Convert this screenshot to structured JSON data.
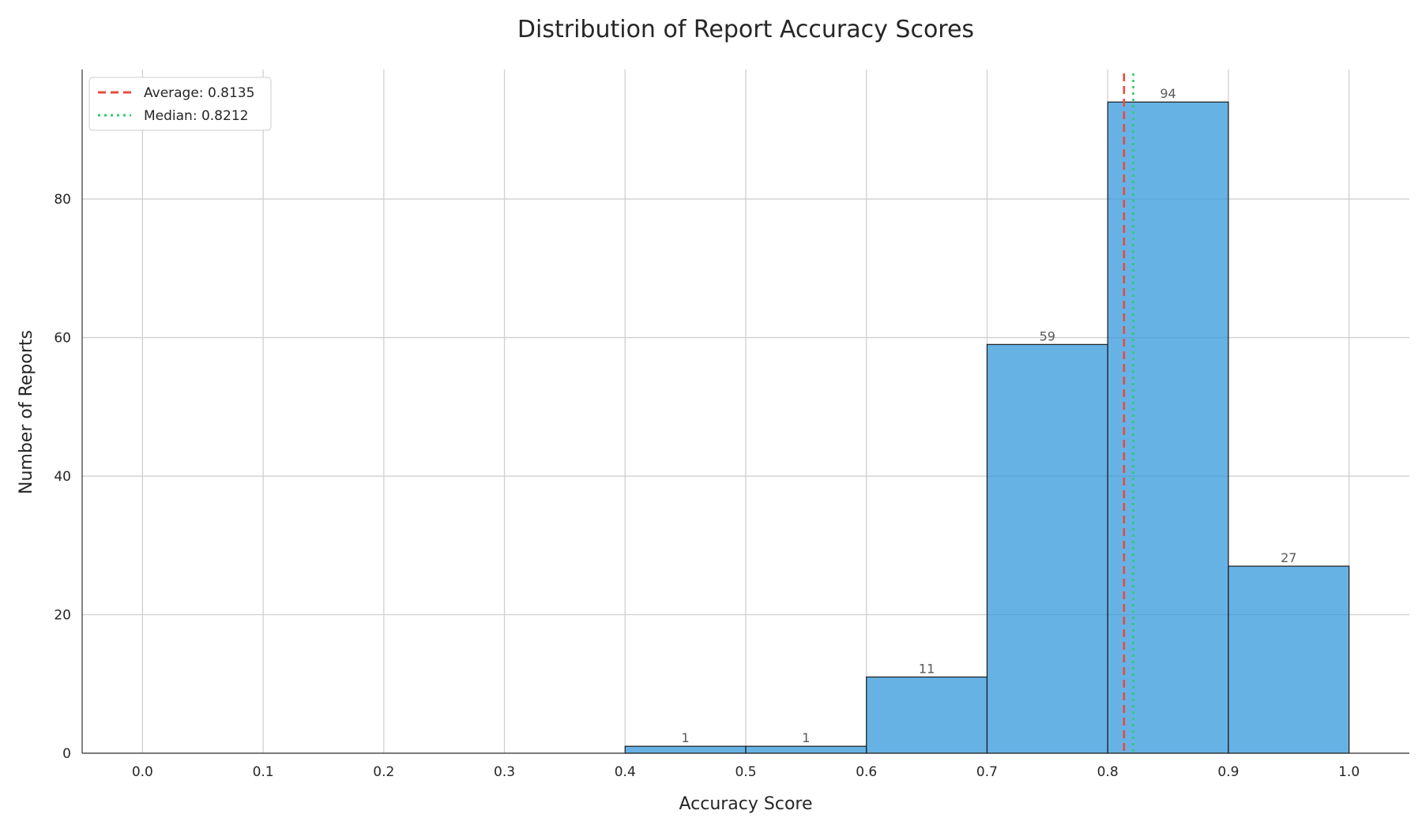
{
  "chart_data": {
    "type": "bar",
    "title": "Distribution of Report Accuracy Scores",
    "xlabel": "Accuracy Score",
    "ylabel": "Number of Reports",
    "bins": [
      {
        "start": 0.4,
        "end": 0.5,
        "count": 1
      },
      {
        "start": 0.5,
        "end": 0.6,
        "count": 1
      },
      {
        "start": 0.6,
        "end": 0.7,
        "count": 11
      },
      {
        "start": 0.7,
        "end": 0.8,
        "count": 59
      },
      {
        "start": 0.8,
        "end": 0.9,
        "count": 94
      },
      {
        "start": 0.9,
        "end": 1.0,
        "count": 27
      }
    ],
    "data_labels": [
      "1",
      "1",
      "11",
      "59",
      "94",
      "27"
    ],
    "x_ticks": [
      0.0,
      0.1,
      0.2,
      0.3,
      0.4,
      0.5,
      0.6,
      0.7,
      0.8,
      0.9,
      1.0
    ],
    "x_tick_labels": [
      "0.0",
      "0.1",
      "0.2",
      "0.3",
      "0.4",
      "0.5",
      "0.6",
      "0.7",
      "0.8",
      "0.9",
      "1.0"
    ],
    "y_ticks": [
      0,
      20,
      40,
      60,
      80
    ],
    "y_tick_labels": [
      "0",
      "20",
      "40",
      "60",
      "80"
    ],
    "xlim": [
      -0.05,
      1.05
    ],
    "ylim": [
      0,
      98.7
    ],
    "grid": true,
    "bar_color": "#3498db",
    "bar_edge_color": "#1a1a1a",
    "reference_lines": [
      {
        "name": "Average: 0.8135",
        "value": 0.8135,
        "style": "dashed",
        "color": "#e74c3c"
      },
      {
        "name": "Median: 0.8212",
        "value": 0.8212,
        "style": "dotted",
        "color": "#2ecc71"
      }
    ],
    "legend_position": "top-left"
  }
}
